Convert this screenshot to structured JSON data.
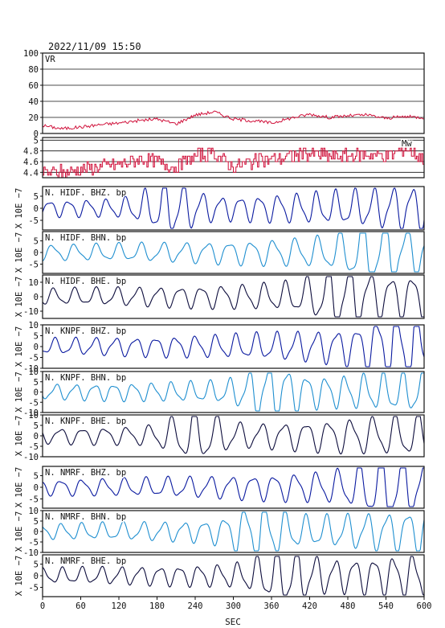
{
  "header": {
    "datetime": "2022/11/09  15:50"
  },
  "chart_data": [
    {
      "type": "line",
      "panel": "vr",
      "label": "VR",
      "x_range": [
        0,
        600
      ],
      "ylim": [
        0,
        100
      ],
      "yticks": [
        0,
        20,
        40,
        60,
        80,
        100
      ],
      "grid": "horizontal",
      "color": "#d0103a",
      "series": [
        {
          "x": [
            0,
            30,
            60,
            90,
            120,
            150,
            180,
            210,
            240,
            270,
            300,
            330,
            360,
            390,
            420,
            450,
            480,
            510,
            540,
            570,
            600
          ],
          "values": [
            10,
            6,
            8,
            11,
            13,
            16,
            18,
            12,
            23,
            27,
            18,
            16,
            13,
            19,
            24,
            20,
            22,
            23,
            19,
            21,
            20
          ]
        }
      ]
    },
    {
      "type": "line",
      "panel": "mw",
      "label": "Mw",
      "x_range": [
        0,
        600
      ],
      "ylim": [
        4.3,
        5.05
      ],
      "yticks": [
        4.4,
        4.6,
        4.8,
        5.0
      ],
      "grid": "horizontal",
      "color": "#d0103a",
      "series": [
        {
          "x": [
            0,
            30,
            60,
            90,
            120,
            150,
            180,
            210,
            240,
            270,
            300,
            330,
            360,
            390,
            420,
            450,
            480,
            510,
            540,
            570,
            600
          ],
          "values": [
            4.4,
            4.4,
            4.45,
            4.5,
            4.55,
            4.65,
            4.6,
            4.5,
            4.7,
            4.75,
            4.5,
            4.6,
            4.65,
            4.7,
            4.75,
            4.7,
            4.7,
            4.75,
            4.7,
            4.85,
            4.65
          ]
        }
      ]
    },
    {
      "type": "line",
      "panel": "trace",
      "label": "N. HIDF. BHZ. bp",
      "color": "#0a1aa0",
      "ylim": [
        -9,
        9
      ],
      "yticks": [
        -5,
        0,
        5
      ],
      "x_range": [
        0,
        600
      ]
    },
    {
      "type": "line",
      "panel": "trace",
      "label": "N. HIDF. BHN. bp",
      "color": "#1f8fd0",
      "ylim": [
        -9,
        9
      ],
      "yticks": [
        -5,
        0,
        5
      ],
      "x_range": [
        0,
        600
      ]
    },
    {
      "type": "line",
      "panel": "trace",
      "label": "N. HIDF. BHE. bp",
      "color": "#0c0c3c",
      "ylim": [
        -15,
        15
      ],
      "yticks": [
        -10,
        0,
        10
      ],
      "x_range": [
        0,
        600
      ]
    },
    {
      "type": "line",
      "panel": "trace",
      "label": "N. KNPF. BHZ. bp",
      "color": "#0a1aa0",
      "ylim": [
        -10,
        10
      ],
      "yticks": [
        -10,
        -5,
        0,
        5,
        10
      ],
      "x_range": [
        0,
        600
      ]
    },
    {
      "type": "line",
      "panel": "trace",
      "label": "N. KNPF. BHN. bp",
      "color": "#1f8fd0",
      "ylim": [
        -10,
        10
      ],
      "yticks": [
        -10,
        -5,
        0,
        5,
        10
      ],
      "x_range": [
        0,
        600
      ]
    },
    {
      "type": "line",
      "panel": "trace",
      "label": "N. KNPF. BHE. bp",
      "color": "#0c0c3c",
      "ylim": [
        -10,
        10
      ],
      "yticks": [
        -10,
        -5,
        0,
        5,
        10
      ],
      "x_range": [
        0,
        600
      ]
    },
    {
      "type": "line",
      "panel": "trace",
      "label": "N. NMRF. BHZ. bp",
      "color": "#0a1aa0",
      "ylim": [
        -9,
        9
      ],
      "yticks": [
        -5,
        0,
        5
      ],
      "x_range": [
        0,
        600
      ]
    },
    {
      "type": "line",
      "panel": "trace",
      "label": "N. NMRF. BHN. bp",
      "color": "#1f8fd0",
      "ylim": [
        -10,
        10
      ],
      "yticks": [
        -10,
        -5,
        0,
        5,
        10
      ],
      "x_range": [
        0,
        600
      ]
    },
    {
      "type": "line",
      "panel": "trace",
      "label": "N. NMRF. BHE. bp",
      "color": "#0c0c3c",
      "ylim": [
        -9,
        9
      ],
      "yticks": [
        -5,
        0,
        5
      ],
      "x_range": [
        0,
        600
      ]
    }
  ],
  "y_unit_label": "X 10E −7",
  "x_axis": {
    "label": "SEC",
    "ticks": [
      0,
      60,
      120,
      180,
      240,
      300,
      360,
      420,
      480,
      540,
      600
    ]
  }
}
